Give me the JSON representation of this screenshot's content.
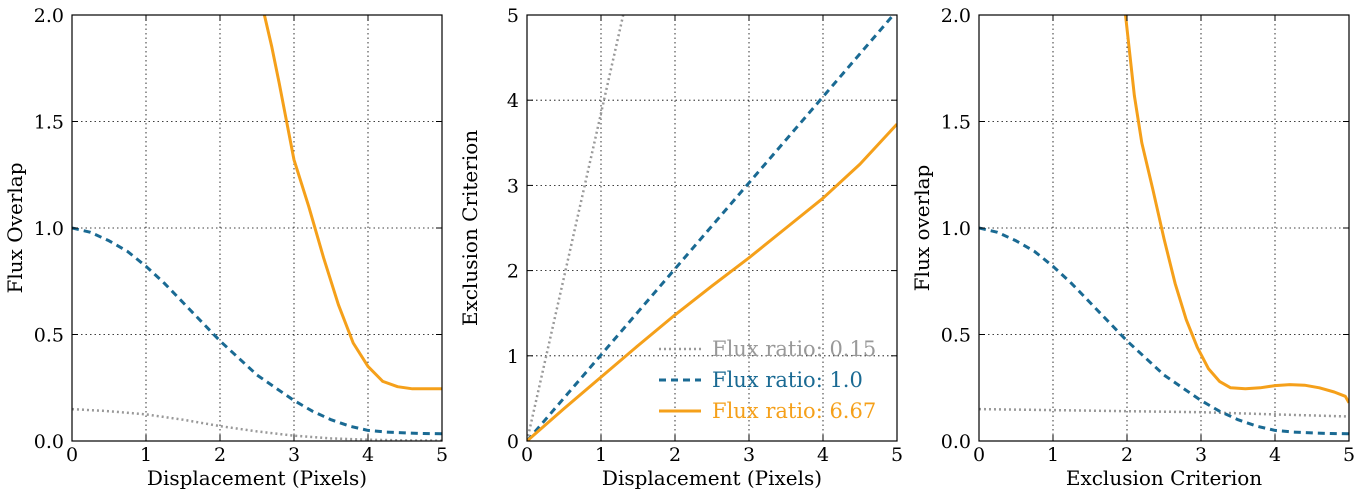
{
  "chart_data": [
    {
      "type": "line",
      "xlabel": "Displacement (Pixels)",
      "ylabel": "Flux Overlap",
      "xlim": [
        0,
        5
      ],
      "ylim": [
        0,
        2.0
      ],
      "xticks": [
        "0",
        "1",
        "2",
        "3",
        "4",
        "5"
      ],
      "yticks": [
        "0.0",
        "0.5",
        "1.0",
        "1.5",
        "2.0"
      ],
      "grid": true,
      "series": [
        {
          "color": "#999999",
          "style": "dotted",
          "x": [
            0,
            0.5,
            1,
            1.5,
            2,
            2.5,
            3,
            3.5,
            4,
            4.5,
            5
          ],
          "y": [
            0.15,
            0.14,
            0.125,
            0.1,
            0.07,
            0.045,
            0.025,
            0.012,
            0.006,
            0.003,
            0.002
          ]
        },
        {
          "color": "#1a6a93",
          "style": "dashed",
          "x": [
            0,
            0.25,
            0.5,
            0.75,
            1,
            1.25,
            1.5,
            1.75,
            2,
            2.25,
            2.5,
            2.75,
            3,
            3.25,
            3.5,
            3.75,
            4,
            4.25,
            4.5,
            4.75,
            5
          ],
          "y": [
            1.0,
            0.98,
            0.94,
            0.89,
            0.82,
            0.74,
            0.65,
            0.56,
            0.47,
            0.39,
            0.31,
            0.25,
            0.19,
            0.14,
            0.1,
            0.07,
            0.05,
            0.042,
            0.038,
            0.035,
            0.034
          ]
        },
        {
          "color": "#f5a01a",
          "style": "solid",
          "x": [
            2.6,
            2.7,
            2.8,
            2.9,
            3.0,
            3.2,
            3.4,
            3.6,
            3.8,
            4.0,
            4.2,
            4.4,
            4.6,
            4.8,
            5.0
          ],
          "y": [
            2.0,
            1.85,
            1.68,
            1.5,
            1.32,
            1.1,
            0.86,
            0.64,
            0.46,
            0.35,
            0.28,
            0.255,
            0.245,
            0.245,
            0.245
          ]
        }
      ]
    },
    {
      "type": "line",
      "xlabel": "Displacement (Pixels)",
      "ylabel": "Exclusion Criterion",
      "xlim": [
        0,
        5
      ],
      "ylim": [
        0,
        5
      ],
      "xticks": [
        "0",
        "1",
        "2",
        "3",
        "4",
        "5"
      ],
      "yticks": [
        "0",
        "1",
        "2",
        "3",
        "4",
        "5"
      ],
      "grid": true,
      "legend": {
        "placement": "lower-right",
        "entries": [
          "Flux ratio: 0.15",
          "Flux ratio: 1.0",
          "Flux ratio: 6.67"
        ]
      },
      "series": [
        {
          "name": "Flux ratio: 0.15",
          "color": "#999999",
          "style": "dotted",
          "x": [
            0,
            1.3
          ],
          "y": [
            0,
            5.0
          ]
        },
        {
          "name": "Flux ratio: 1.0",
          "color": "#1a6a93",
          "style": "dashed",
          "x": [
            0,
            5
          ],
          "y": [
            0,
            5.05
          ]
        },
        {
          "name": "Flux ratio: 6.67",
          "color": "#f5a01a",
          "style": "solid",
          "x": [
            0,
            0.5,
            1,
            1.5,
            2,
            2.5,
            3,
            3.5,
            4,
            4.5,
            5
          ],
          "y": [
            0,
            0.38,
            0.75,
            1.12,
            1.48,
            1.82,
            2.15,
            2.5,
            2.85,
            3.25,
            3.72
          ]
        }
      ]
    },
    {
      "type": "line",
      "xlabel": "Exclusion Criterion",
      "ylabel": "Flux overlap",
      "xlim": [
        0,
        5
      ],
      "ylim": [
        0,
        2.0
      ],
      "xticks": [
        "0",
        "1",
        "2",
        "3",
        "4",
        "5"
      ],
      "yticks": [
        "0.0",
        "0.5",
        "1.0",
        "1.5",
        "2.0"
      ],
      "grid": true,
      "series": [
        {
          "color": "#999999",
          "style": "dotted",
          "x": [
            0,
            1,
            2,
            3,
            4,
            5
          ],
          "y": [
            0.15,
            0.145,
            0.14,
            0.135,
            0.125,
            0.115
          ]
        },
        {
          "color": "#1a6a93",
          "style": "dashed",
          "x": [
            0,
            0.25,
            0.5,
            0.75,
            1,
            1.25,
            1.5,
            1.75,
            2,
            2.25,
            2.5,
            2.75,
            3,
            3.25,
            3.5,
            3.75,
            4,
            4.25,
            4.5,
            4.75,
            5
          ],
          "y": [
            1.0,
            0.98,
            0.94,
            0.89,
            0.82,
            0.74,
            0.65,
            0.56,
            0.47,
            0.39,
            0.31,
            0.25,
            0.19,
            0.14,
            0.1,
            0.07,
            0.05,
            0.042,
            0.038,
            0.035,
            0.034
          ]
        },
        {
          "color": "#f5a01a",
          "style": "solid",
          "x": [
            1.98,
            2.1,
            2.2,
            2.35,
            2.5,
            2.65,
            2.8,
            2.95,
            3.1,
            3.25,
            3.4,
            3.6,
            3.8,
            4.0,
            4.2,
            4.4,
            4.6,
            4.8,
            4.95,
            5.0
          ],
          "y": [
            2.0,
            1.62,
            1.4,
            1.18,
            0.95,
            0.74,
            0.57,
            0.44,
            0.34,
            0.28,
            0.25,
            0.245,
            0.25,
            0.26,
            0.265,
            0.262,
            0.25,
            0.23,
            0.21,
            0.18
          ]
        }
      ]
    }
  ]
}
